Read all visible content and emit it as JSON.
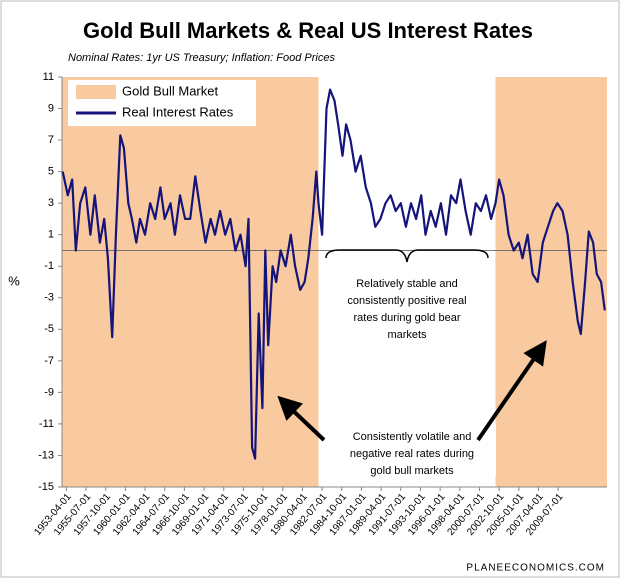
{
  "chart_data": {
    "type": "line",
    "title": "Gold Bull Markets & Real US Interest Rates",
    "subtitle": "Nominal Rates: 1yr US Treasury; Inflation: Food Prices",
    "y_label": "%",
    "footer": "PLANEECONOMICS.COM",
    "shading": {
      "name": "Gold Bull Market",
      "color": "#f9c9a0",
      "periods": [
        [
          "1952-10-01",
          "1982-02-01"
        ],
        [
          "2002-05-01",
          "2015-02-01"
        ]
      ]
    },
    "series": [
      {
        "name": "Real Interest Rates",
        "color": "#14147a",
        "x": [
          "1952-11-01",
          "1953-06-01",
          "1953-12-01",
          "1954-05-01",
          "1954-11-01",
          "1955-06-01",
          "1956-01-01",
          "1956-07-01",
          "1957-02-01",
          "1957-08-01",
          "1958-01-01",
          "1958-07-01",
          "1958-12-01",
          "1959-06-01",
          "1959-11-01",
          "1960-05-01",
          "1960-10-01",
          "1961-04-01",
          "1961-09-01",
          "1962-04-01",
          "1962-11-01",
          "1963-06-01",
          "1964-01-01",
          "1964-07-01",
          "1965-03-01",
          "1965-09-01",
          "1966-04-01",
          "1966-11-01",
          "1967-06-01",
          "1968-01-01",
          "1968-08-01",
          "1969-03-01",
          "1969-10-01",
          "1970-04-01",
          "1970-11-01",
          "1971-06-01",
          "1972-01-01",
          "1972-08-01",
          "1973-03-01",
          "1973-10-01",
          "1974-02-01",
          "1974-07-01",
          "1974-11-01",
          "1975-04-01",
          "1975-09-01",
          "1976-01-01",
          "1976-05-01",
          "1976-11-01",
          "1977-04-01",
          "1977-10-01",
          "1978-05-01",
          "1978-12-01",
          "1979-06-01",
          "1980-01-01",
          "1980-07-01",
          "1980-12-01",
          "1981-06-01",
          "1981-11-01",
          "1982-02-01",
          "1982-07-01",
          "1983-01-01",
          "1983-06-01",
          "1983-12-01",
          "1984-05-01",
          "1984-11-01",
          "1985-04-01",
          "1985-10-01",
          "1986-05-01",
          "1986-12-01",
          "1987-07-01",
          "1988-02-01",
          "1988-08-01",
          "1989-03-01",
          "1989-10-01",
          "1990-05-01",
          "1990-12-01",
          "1991-07-01",
          "1992-02-01",
          "1992-09-01",
          "1993-04-01",
          "1993-11-01",
          "1994-05-01",
          "1994-12-01",
          "1995-07-01",
          "1996-02-01",
          "1996-09-01",
          "1997-04-01",
          "1997-11-01",
          "1998-05-01",
          "1998-12-01",
          "1999-07-01",
          "2000-02-01",
          "2000-09-01",
          "2001-04-01",
          "2001-11-01",
          "2002-05-01",
          "2002-10-01",
          "2003-04-01",
          "2003-11-01",
          "2004-06-01",
          "2005-01-01",
          "2005-06-01",
          "2006-01-01",
          "2006-08-01",
          "2007-03-01",
          "2007-10-01",
          "2008-05-01",
          "2008-12-01",
          "2009-06-01",
          "2010-01-01",
          "2010-08-01",
          "2011-03-01",
          "2011-10-01",
          "2012-02-01",
          "2012-08-01",
          "2013-01-01",
          "2013-07-01",
          "2013-12-01",
          "2014-06-01",
          "2014-11-01"
        ],
        "values": [
          5,
          3.5,
          4.5,
          0,
          3,
          4,
          1,
          3.5,
          0.5,
          2,
          -0.5,
          -5.5,
          1,
          7.3,
          6.5,
          3,
          2,
          0.5,
          2,
          1,
          3,
          2,
          4,
          2,
          3,
          1,
          3.5,
          2,
          2,
          4.7,
          2.5,
          0.5,
          2,
          1,
          2.5,
          1,
          2,
          0,
          1,
          -1,
          2,
          -12.5,
          -13.2,
          -4,
          -10,
          0,
          -6,
          -1,
          -2,
          0,
          -1,
          1,
          -1,
          -2.5,
          -2,
          -0.5,
          2,
          5,
          3,
          1,
          9,
          10.2,
          9.5,
          8,
          6,
          8,
          7,
          5,
          6,
          4,
          3,
          1.5,
          2,
          3,
          3.5,
          2.5,
          3,
          1.5,
          3,
          2,
          3.5,
          1,
          2.5,
          1.5,
          3,
          1,
          3.5,
          3,
          4.5,
          2.5,
          1,
          3,
          2.5,
          3.5,
          2,
          3,
          4.5,
          3.5,
          1,
          0,
          0.5,
          -0.5,
          1,
          -1.5,
          -2,
          0.5,
          1.5,
          2.5,
          3,
          2.5,
          1,
          -2,
          -4.5,
          -5.3,
          -2,
          1.2,
          0.5,
          -1.5,
          -2,
          -3.8
        ]
      }
    ],
    "xlim": [
      "1952-10-01",
      "2015-02-01"
    ],
    "xticks": [
      "1953-04-01",
      "1955-07-01",
      "1957-10-01",
      "1960-01-01",
      "1962-04-01",
      "1964-07-01",
      "1966-10-01",
      "1969-01-01",
      "1971-04-01",
      "1973-07-01",
      "1975-10-01",
      "1978-01-01",
      "1980-04-01",
      "1982-07-01",
      "1984-10-01",
      "1987-01-01",
      "1989-04-01",
      "1991-07-01",
      "1993-10-01",
      "1996-01-01",
      "1998-04-01",
      "2000-07-01",
      "2002-10-01",
      "2005-01-01",
      "2007-04-01",
      "2009-07-01"
    ],
    "ylim": [
      -15,
      11
    ],
    "yticks": [
      -15,
      -13,
      -11,
      -9,
      -7,
      -5,
      -3,
      -1,
      1,
      3,
      5,
      7,
      9,
      11
    ],
    "annotations": [
      {
        "lines": [
          "Relatively stable and",
          "consistently positive real",
          "rates during gold bear",
          "markets"
        ]
      },
      {
        "lines": [
          "Consistently volatile and",
          "negative real rates during",
          "gold bull markets"
        ]
      }
    ]
  }
}
